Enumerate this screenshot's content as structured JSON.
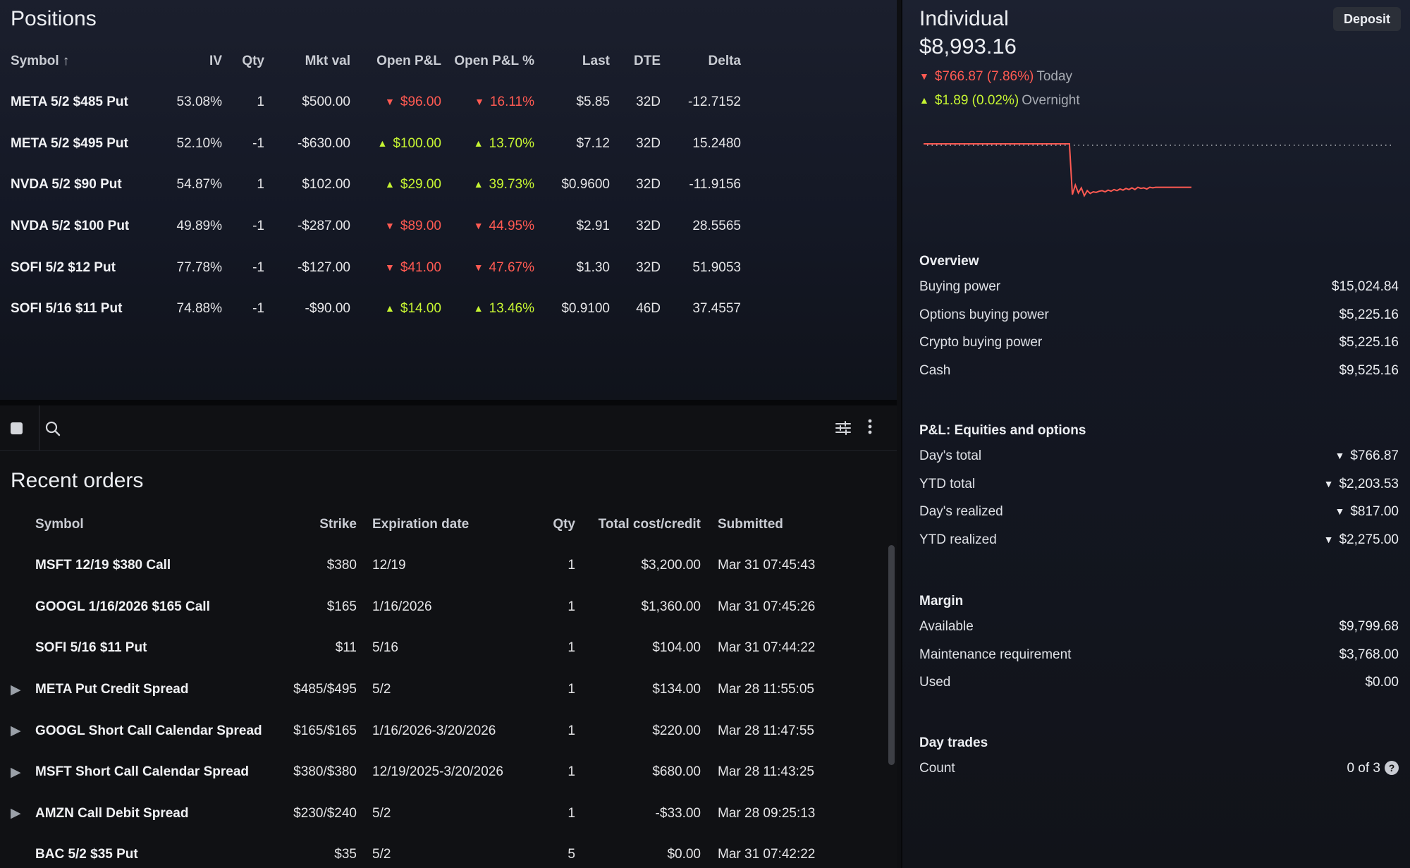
{
  "positions": {
    "title": "Positions",
    "columns": {
      "symbol": "Symbol ↑",
      "iv": "IV",
      "qty": "Qty",
      "mkt_val": "Mkt val",
      "open_pl": "Open P&L",
      "open_pl_pct": "Open P&L %",
      "last": "Last",
      "dte": "DTE",
      "delta": "Delta"
    },
    "rows": [
      {
        "symbol": "META 5/2 $485 Put",
        "iv": "53.08%",
        "qty": "1",
        "mkt_val": "$500.00",
        "open_pl": "$96.00",
        "open_pl_dir": "down",
        "open_pl_pct": "16.11%",
        "last": "$5.85",
        "dte": "32D",
        "delta": "-12.7152"
      },
      {
        "symbol": "META 5/2 $495 Put",
        "iv": "52.10%",
        "qty": "-1",
        "mkt_val": "-$630.00",
        "open_pl": "$100.00",
        "open_pl_dir": "up",
        "open_pl_pct": "13.70%",
        "last": "$7.12",
        "dte": "32D",
        "delta": "15.2480"
      },
      {
        "symbol": "NVDA 5/2 $90 Put",
        "iv": "54.87%",
        "qty": "1",
        "mkt_val": "$102.00",
        "open_pl": "$29.00",
        "open_pl_dir": "up",
        "open_pl_pct": "39.73%",
        "last": "$0.9600",
        "dte": "32D",
        "delta": "-11.9156"
      },
      {
        "symbol": "NVDA 5/2 $100 Put",
        "iv": "49.89%",
        "qty": "-1",
        "mkt_val": "-$287.00",
        "open_pl": "$89.00",
        "open_pl_dir": "down",
        "open_pl_pct": "44.95%",
        "last": "$2.91",
        "dte": "32D",
        "delta": "28.5565"
      },
      {
        "symbol": "SOFI 5/2 $12 Put",
        "iv": "77.78%",
        "qty": "-1",
        "mkt_val": "-$127.00",
        "open_pl": "$41.00",
        "open_pl_dir": "down",
        "open_pl_pct": "47.67%",
        "last": "$1.30",
        "dte": "32D",
        "delta": "51.9053"
      },
      {
        "symbol": "SOFI 5/16 $11 Put",
        "iv": "74.88%",
        "qty": "-1",
        "mkt_val": "-$90.00",
        "open_pl": "$14.00",
        "open_pl_dir": "up",
        "open_pl_pct": "13.46%",
        "last": "$0.9100",
        "dte": "46D",
        "delta": "37.4557"
      }
    ]
  },
  "toolbar": {
    "icons": [
      "stop-square-icon",
      "search-icon",
      "filter-sliders-icon",
      "more-vertical-icon"
    ]
  },
  "orders": {
    "title": "Recent orders",
    "columns": {
      "symbol": "Symbol",
      "strike": "Strike",
      "expiration": "Expiration date",
      "qty": "Qty",
      "total": "Total cost/credit",
      "submitted": "Submitted"
    },
    "rows": [
      {
        "expandable": false,
        "symbol": "MSFT 12/19 $380 Call",
        "strike": "$380",
        "expiration": "12/19",
        "qty": "1",
        "total": "$3,200.00",
        "submitted": "Mar 31 07:45:43"
      },
      {
        "expandable": false,
        "symbol": "GOOGL 1/16/2026 $165 Call",
        "strike": "$165",
        "expiration": "1/16/2026",
        "qty": "1",
        "total": "$1,360.00",
        "submitted": "Mar 31 07:45:26"
      },
      {
        "expandable": false,
        "symbol": "SOFI 5/16 $11 Put",
        "strike": "$11",
        "expiration": "5/16",
        "qty": "1",
        "total": "$104.00",
        "submitted": "Mar 31 07:44:22"
      },
      {
        "expandable": true,
        "symbol": "META Put Credit Spread",
        "strike": "$485/$495",
        "expiration": "5/2",
        "qty": "1",
        "total": "$134.00",
        "submitted": "Mar 28 11:55:05"
      },
      {
        "expandable": true,
        "symbol": "GOOGL Short Call Calendar Spread",
        "strike": "$165/$165",
        "expiration": "1/16/2026-3/20/2026",
        "qty": "1",
        "total": "$220.00",
        "submitted": "Mar 28 11:47:55"
      },
      {
        "expandable": true,
        "symbol": "MSFT Short Call Calendar Spread",
        "strike": "$380/$380",
        "expiration": "12/19/2025-3/20/2026",
        "qty": "1",
        "total": "$680.00",
        "submitted": "Mar 28 11:43:25"
      },
      {
        "expandable": true,
        "symbol": "AMZN Call Debit Spread",
        "strike": "$230/$240",
        "expiration": "5/2",
        "qty": "1",
        "total": "-$33.00",
        "submitted": "Mar 28 09:25:13"
      },
      {
        "expandable": false,
        "symbol": "BAC 5/2 $35 Put",
        "strike": "$35",
        "expiration": "5/2",
        "qty": "5",
        "total": "$0.00",
        "submitted": "Mar 31 07:42:22"
      }
    ]
  },
  "account": {
    "name": "Individual",
    "value": "$8,993.16",
    "deposit_label": "Deposit",
    "today": {
      "amount": "$766.87 (7.86%)",
      "direction": "down",
      "label": "Today"
    },
    "overnight": {
      "amount": "$1.89 (0.02%)",
      "direction": "up",
      "label": "Overnight"
    },
    "chart_series": [
      0.05,
      0.05,
      0.05,
      0.05,
      0.05,
      0.05,
      0.05,
      0.05,
      0.05,
      0.05,
      0.05,
      0.05,
      0.05,
      0.05,
      0.05,
      0.05,
      0.05,
      0.05,
      0.05,
      0.05,
      0.05,
      0.05,
      0.05,
      0.05,
      0.05,
      0.05,
      0.05,
      0.05,
      0.05,
      0.05,
      0.05,
      0.05,
      0.05,
      0.05,
      0.05,
      0.05,
      0.05,
      0.05,
      0.05,
      0.05,
      0.05,
      0.05,
      0.05,
      0.05,
      0.05,
      0.05,
      0.05,
      0.05,
      0.05,
      0.05,
      0.95,
      0.78,
      0.92,
      0.83,
      0.97,
      0.88,
      0.93,
      0.9,
      0.91,
      0.89,
      0.88,
      0.9,
      0.87,
      0.89,
      0.86,
      0.88,
      0.85,
      0.87,
      0.84,
      0.86,
      0.83,
      0.86,
      0.82,
      0.84,
      0.83,
      0.85,
      0.82,
      0.83,
      0.82,
      0.82,
      0.82,
      0.82,
      0.82,
      0.82,
      0.82,
      0.82,
      0.82,
      0.82,
      0.82,
      0.82,
      0.82
    ],
    "chart_color": "#ff5a52",
    "baseline_color": "#8a8e96"
  },
  "overview": {
    "title": "Overview",
    "rows": [
      {
        "label": "Buying power",
        "value": "$15,024.84"
      },
      {
        "label": "Options buying power",
        "value": "$5,225.16"
      },
      {
        "label": "Crypto buying power",
        "value": "$5,225.16"
      },
      {
        "label": "Cash",
        "value": "$9,525.16"
      }
    ]
  },
  "pl": {
    "title": "P&L: Equities and options",
    "rows": [
      {
        "label": "Day's total",
        "value": "$766.87",
        "direction": "down"
      },
      {
        "label": "YTD total",
        "value": "$2,203.53",
        "direction": "down"
      },
      {
        "label": "Day's realized",
        "value": "$817.00",
        "direction": "down"
      },
      {
        "label": "YTD realized",
        "value": "$2,275.00",
        "direction": "down"
      }
    ]
  },
  "margin": {
    "title": "Margin",
    "rows": [
      {
        "label": "Available",
        "value": "$9,799.68"
      },
      {
        "label": "Maintenance requirement",
        "value": "$3,768.00"
      },
      {
        "label": "Used",
        "value": "$0.00"
      }
    ]
  },
  "day_trades": {
    "title": "Day trades",
    "count_label": "Count",
    "count_value": "0 of 3",
    "help_glyph": "?"
  },
  "colors": {
    "up": "#c6f432",
    "down": "#ff5a52"
  }
}
